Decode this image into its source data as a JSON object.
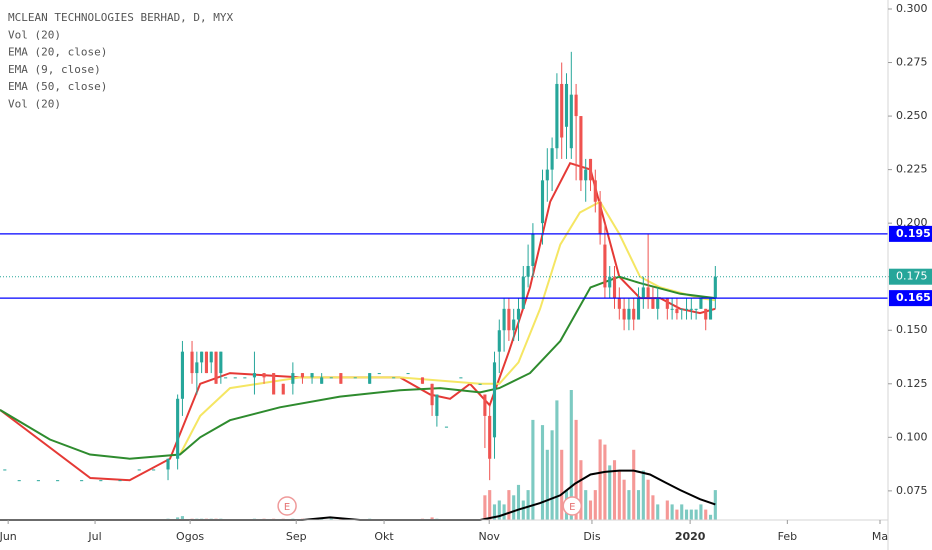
{
  "chart_data": {
    "type": "candlestick",
    "legend_lines": [
      "MCLEAN TECHNOLOGIES BERHAD, D, MYX",
      "Vol (20)",
      "EMA (20, close)",
      "EMA (9, close)",
      "EMA (50, close)",
      "Vol (20)"
    ],
    "up_color": "#26a69a",
    "down_color": "#ef5350",
    "xlim": [
      -3,
      180.3
    ],
    "xticks": [
      {
        "value": -1.3,
        "label": "Jun"
      },
      {
        "value": 16.8,
        "label": "Jul"
      },
      {
        "value": 36.6,
        "label": "Ogos"
      },
      {
        "value": 58.7,
        "label": "Sep"
      },
      {
        "value": 77,
        "label": "Okt"
      },
      {
        "value": 98.9,
        "label": "Nov"
      },
      {
        "value": 120.3,
        "label": "Dis"
      },
      {
        "value": 140.75,
        "label": "2020"
      },
      {
        "value": 161,
        "label": "Feb"
      },
      {
        "value": 180.3,
        "label": "Ma"
      }
    ],
    "ylim": [
      0.0614,
      0.3042
    ],
    "yticks": [
      {
        "value": 0.3,
        "label": "0.300"
      },
      0.275,
      {
        "value": 0.25,
        "label": "0.250"
      },
      0.225,
      {
        "value": 0.2,
        "label": "0.200"
      },
      0.175,
      {
        "value": 0.15,
        "label": "0.150"
      },
      0.125,
      {
        "value": 0.1,
        "label": "0.100"
      },
      0.075
    ],
    "volume_lim": [
      0,
      400
    ],
    "candles": {
      "x": [
        -2,
        1,
        5,
        9,
        14,
        18,
        22,
        26,
        29,
        32,
        34,
        35,
        37,
        38,
        39,
        40,
        41,
        42,
        43,
        44,
        46,
        48,
        50,
        52,
        54,
        56,
        58,
        60,
        62,
        64,
        66,
        68,
        71,
        74,
        76,
        79,
        82,
        85,
        87,
        88,
        90,
        93,
        97,
        98,
        99,
        100,
        101,
        102,
        103,
        104,
        105,
        106,
        107,
        108,
        110,
        111,
        112,
        113,
        114,
        115,
        116,
        117,
        118,
        119,
        120,
        121,
        122,
        123,
        124,
        125,
        126,
        127,
        128,
        129,
        130,
        131,
        132,
        133,
        134,
        136,
        137,
        138,
        139,
        140,
        141,
        142,
        143,
        144,
        145,
        146
      ],
      "open": [
        0.085,
        0.08,
        0.08,
        0.08,
        0.08,
        0.08,
        0.08,
        0.085,
        0.085,
        0.085,
        0.09,
        0.118,
        0.14,
        0.13,
        0.135,
        0.14,
        0.135,
        0.14,
        0.13,
        0.128,
        0.128,
        0.128,
        0.128,
        0.13,
        0.13,
        0.125,
        0.125,
        0.13,
        0.128,
        0.125,
        0.128,
        0.13,
        0.128,
        0.125,
        0.13,
        0.128,
        0.13,
        0.128,
        0.125,
        0.11,
        0.105,
        0.128,
        0.125,
        0.12,
        0.11,
        0.1,
        0.14,
        0.15,
        0.16,
        0.15,
        0.155,
        0.16,
        0.175,
        0.18,
        0.2,
        0.22,
        0.225,
        0.235,
        0.265,
        0.245,
        0.235,
        0.26,
        0.25,
        0.22,
        0.23,
        0.22,
        0.21,
        0.19,
        0.17,
        0.175,
        0.165,
        0.16,
        0.155,
        0.16,
        0.155,
        0.165,
        0.17,
        0.165,
        0.16,
        0.165,
        0.16,
        0.16,
        0.16,
        0.16,
        0.16,
        0.16,
        0.16,
        0.16,
        0.155,
        0.165
      ],
      "high": [
        0.085,
        0.08,
        0.08,
        0.08,
        0.08,
        0.08,
        0.08,
        0.085,
        0.085,
        0.09,
        0.12,
        0.145,
        0.145,
        0.14,
        0.14,
        0.14,
        0.14,
        0.14,
        0.14,
        0.128,
        0.128,
        0.128,
        0.14,
        0.13,
        0.13,
        0.125,
        0.135,
        0.13,
        0.13,
        0.13,
        0.128,
        0.13,
        0.128,
        0.13,
        0.13,
        0.128,
        0.13,
        0.128,
        0.125,
        0.12,
        0.105,
        0.128,
        0.125,
        0.12,
        0.115,
        0.14,
        0.155,
        0.165,
        0.165,
        0.16,
        0.165,
        0.18,
        0.19,
        0.2,
        0.225,
        0.235,
        0.24,
        0.27,
        0.275,
        0.27,
        0.28,
        0.265,
        0.25,
        0.23,
        0.23,
        0.225,
        0.215,
        0.2,
        0.18,
        0.18,
        0.17,
        0.165,
        0.165,
        0.165,
        0.17,
        0.175,
        0.195,
        0.17,
        0.17,
        0.165,
        0.165,
        0.165,
        0.16,
        0.165,
        0.165,
        0.16,
        0.165,
        0.16,
        0.165,
        0.18
      ],
      "low": [
        0.085,
        0.08,
        0.08,
        0.08,
        0.08,
        0.08,
        0.08,
        0.085,
        0.085,
        0.08,
        0.085,
        0.11,
        0.125,
        0.12,
        0.13,
        0.13,
        0.13,
        0.125,
        0.125,
        0.128,
        0.128,
        0.128,
        0.12,
        0.125,
        0.12,
        0.12,
        0.12,
        0.125,
        0.125,
        0.125,
        0.128,
        0.125,
        0.128,
        0.125,
        0.13,
        0.128,
        0.13,
        0.125,
        0.11,
        0.105,
        0.105,
        0.128,
        0.125,
        0.095,
        0.08,
        0.09,
        0.13,
        0.14,
        0.145,
        0.145,
        0.145,
        0.16,
        0.17,
        0.175,
        0.19,
        0.21,
        0.215,
        0.23,
        0.23,
        0.23,
        0.23,
        0.22,
        0.215,
        0.21,
        0.215,
        0.205,
        0.19,
        0.165,
        0.165,
        0.16,
        0.155,
        0.15,
        0.15,
        0.15,
        0.155,
        0.16,
        0.16,
        0.16,
        0.155,
        0.155,
        0.155,
        0.155,
        0.155,
        0.155,
        0.155,
        0.155,
        0.16,
        0.15,
        0.155,
        0.16
      ],
      "close": [
        0.085,
        0.08,
        0.08,
        0.08,
        0.08,
        0.08,
        0.08,
        0.085,
        0.085,
        0.09,
        0.118,
        0.14,
        0.13,
        0.135,
        0.14,
        0.13,
        0.14,
        0.125,
        0.14,
        0.128,
        0.128,
        0.128,
        0.13,
        0.128,
        0.12,
        0.12,
        0.13,
        0.128,
        0.13,
        0.128,
        0.128,
        0.125,
        0.128,
        0.13,
        0.13,
        0.128,
        0.13,
        0.125,
        0.115,
        0.12,
        0.105,
        0.128,
        0.125,
        0.11,
        0.09,
        0.135,
        0.15,
        0.16,
        0.15,
        0.155,
        0.16,
        0.175,
        0.18,
        0.195,
        0.22,
        0.225,
        0.235,
        0.265,
        0.24,
        0.265,
        0.26,
        0.25,
        0.22,
        0.225,
        0.22,
        0.21,
        0.195,
        0.17,
        0.175,
        0.165,
        0.16,
        0.155,
        0.16,
        0.155,
        0.165,
        0.17,
        0.165,
        0.16,
        0.165,
        0.16,
        0.16,
        0.158,
        0.16,
        0.16,
        0.16,
        0.16,
        0.165,
        0.155,
        0.165,
        0.175
      ],
      "volume": [
        0,
        0,
        0,
        0,
        0,
        0,
        0,
        0,
        0,
        1,
        2,
        3,
        1,
        1,
        1,
        1,
        1,
        1,
        1,
        0,
        0,
        0,
        1,
        1,
        1,
        1,
        1,
        1,
        1,
        1,
        1,
        1,
        0,
        1,
        0,
        0,
        0,
        1,
        2,
        1,
        0,
        0,
        0,
        19,
        23,
        12,
        15,
        12,
        23,
        19,
        27,
        15,
        23,
        77,
        73,
        54,
        69,
        92,
        54,
        23,
        100,
        77,
        46,
        23,
        15,
        23,
        62,
        58,
        42,
        46,
        38,
        31,
        23,
        54,
        23,
        38,
        31,
        19,
        12,
        15,
        12,
        8,
        12,
        8,
        8,
        8,
        12,
        8,
        4,
        23
      ]
    },
    "series": [
      {
        "name": "EMA (9, close)",
        "color": "#e53935",
        "x": [
          -3,
          15.8,
          24,
          32.4,
          38.7,
          44.9,
          59.5,
          80.3,
          86.6,
          90.75,
          94.9,
          99,
          103,
          107.4,
          111.6,
          115.75,
          120,
          123,
          126,
          130.3,
          134.5,
          138.7,
          142.8,
          146
        ],
        "values": [
          0.1128,
          0.081,
          0.08,
          0.09,
          0.125,
          0.13,
          0.128,
          0.128,
          0.12,
          0.118,
          0.125,
          0.115,
          0.14,
          0.17,
          0.21,
          0.228,
          0.225,
          0.2,
          0.175,
          0.165,
          0.165,
          0.16,
          0.158,
          0.16
        ]
      },
      {
        "name": "EMA (20, close)",
        "color": "#f5e663",
        "x": [
          34.5,
          38.7,
          44.9,
          59.5,
          80.3,
          97,
          101,
          105,
          109.5,
          113.7,
          117.8,
          122,
          126,
          130.3,
          134.5,
          142.8,
          146
        ],
        "values": [
          0.092,
          0.11,
          0.123,
          0.128,
          0.128,
          0.125,
          0.125,
          0.135,
          0.16,
          0.19,
          0.205,
          0.21,
          0.195,
          0.175,
          0.17,
          0.165,
          0.164
        ]
      },
      {
        "name": "EMA (50, close)",
        "color": "#2e8b2e",
        "x": [
          -3,
          7.4,
          15.75,
          24,
          34.5,
          38.7,
          44.9,
          55.3,
          67.8,
          80.3,
          88.7,
          97,
          101,
          107.4,
          113.7,
          120,
          126,
          130.3,
          138.7,
          146
        ],
        "values": [
          0.1128,
          0.099,
          0.092,
          0.09,
          0.092,
          0.1,
          0.108,
          0.114,
          0.119,
          0.122,
          0.123,
          0.121,
          0.123,
          0.13,
          0.145,
          0.17,
          0.175,
          0.172,
          0.167,
          0.165
        ]
      },
      {
        "name": "Vol (20)",
        "color": "#000000",
        "axis": "volume",
        "x": [
          -3,
          60,
          65.75,
          72,
          97,
          101,
          105,
          109.5,
          113.7,
          116.8,
          120,
          123,
          126,
          129,
          132.4,
          135.5,
          138.7,
          142.8,
          146
        ],
        "values": [
          0,
          0,
          2,
          0,
          0,
          3,
          8,
          13,
          19,
          28,
          35,
          37,
          38,
          38,
          35,
          29,
          23,
          16,
          12
        ]
      }
    ],
    "levels": [
      {
        "value": 0.195,
        "color": "#0000ff"
      },
      {
        "value": 0.165,
        "color": "#0000ff"
      }
    ],
    "last_price": {
      "value": 0.175,
      "color": "#26a69a"
    },
    "events": [
      {
        "x": 56.8,
        "label": "E"
      },
      {
        "x": 116.2,
        "label": "E"
      }
    ]
  }
}
